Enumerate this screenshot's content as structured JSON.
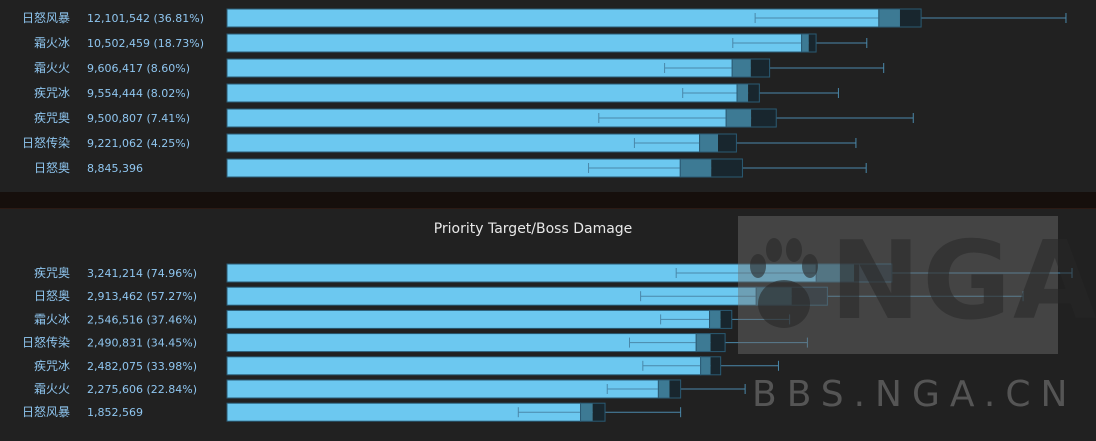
{
  "chart_data": [
    {
      "type": "bar",
      "title": "",
      "xlim": [
        0,
        14000000
      ],
      "series": [
        {
          "name": "日怒风暴",
          "label": "12,101,542 (36.81%)",
          "value": 10800000,
          "q1": 10800000,
          "q3": 11500000,
          "whisker_low": 8750000,
          "whisker_high": 13900000
        },
        {
          "name": "霜火冰",
          "label": "10,502,459 (18.73%)",
          "value": 9520000,
          "q1": 9520000,
          "q3": 9760000,
          "whisker_low": 8380000,
          "whisker_high": 10600000
        },
        {
          "name": "霜火火",
          "label": "9,606,417 (8.60%)",
          "value": 8370000,
          "q1": 8370000,
          "q3": 8990000,
          "whisker_low": 7250000,
          "whisker_high": 10880000
        },
        {
          "name": "疾咒冰",
          "label": "9,554,444 (8.02%)",
          "value": 8450000,
          "q1": 8450000,
          "q3": 8820000,
          "whisker_low": 7550000,
          "whisker_high": 10130000
        },
        {
          "name": "疾咒奥",
          "label": "9,500,807 (7.41%)",
          "value": 8270000,
          "q1": 8270000,
          "q3": 9100000,
          "whisker_low": 6160000,
          "whisker_high": 11370000
        },
        {
          "name": "日怒传染",
          "label": "9,221,062 (4.25%)",
          "value": 7830000,
          "q1": 7830000,
          "q3": 8440000,
          "whisker_low": 6750000,
          "whisker_high": 10420000
        },
        {
          "name": "日怒奥",
          "label": "8,845,396",
          "value": 7510000,
          "q1": 7510000,
          "q3": 8540000,
          "whisker_low": 5990000,
          "whisker_high": 10590000
        }
      ]
    },
    {
      "type": "bar",
      "title": "Priority Target/Boss Damage",
      "xlim": [
        0,
        3800000
      ],
      "series": [
        {
          "name": "疾咒奥",
          "label": "3,241,214 (74.96%)",
          "value": 2650000,
          "q1": 2650000,
          "q3": 2990000,
          "whisker_low": 2020000,
          "whisker_high": 3800000
        },
        {
          "name": "日怒奥",
          "label": "2,913,462 (57.27%)",
          "value": 2380000,
          "q1": 2380000,
          "q3": 2700000,
          "whisker_low": 1860000,
          "whisker_high": 3580000
        },
        {
          "name": "霜火冰",
          "label": "2,546,516 (37.46%)",
          "value": 2170000,
          "q1": 2170000,
          "q3": 2270000,
          "whisker_low": 1950000,
          "whisker_high": 2530000
        },
        {
          "name": "日怒传染",
          "label": "2,490,831 (34.45%)",
          "value": 2110000,
          "q1": 2110000,
          "q3": 2240000,
          "whisker_low": 1810000,
          "whisker_high": 2610000
        },
        {
          "name": "疾咒冰",
          "label": "2,482,075 (33.98%)",
          "value": 2130000,
          "q1": 2130000,
          "q3": 2220000,
          "whisker_low": 1870000,
          "whisker_high": 2480000
        },
        {
          "name": "霜火火",
          "label": "2,275,606 (22.84%)",
          "value": 1940000,
          "q1": 1940000,
          "q3": 2040000,
          "whisker_low": 1710000,
          "whisker_high": 2330000
        },
        {
          "name": "日怒风暴",
          "label": "1,852,569",
          "value": 1590000,
          "q1": 1590000,
          "q3": 1700000,
          "whisker_low": 1310000,
          "whisker_high": 2040000
        }
      ]
    }
  ],
  "colors": {
    "bar": "#6cc8f0",
    "bar_border": "#2a5a73",
    "box_low": "#3d7a94",
    "box_high": "#18262e",
    "whisker": "#4a88aa",
    "label": "#8fc6f0"
  },
  "watermark": {
    "logo_text": "NGA",
    "url_text": "BBS.NGA.CN"
  }
}
